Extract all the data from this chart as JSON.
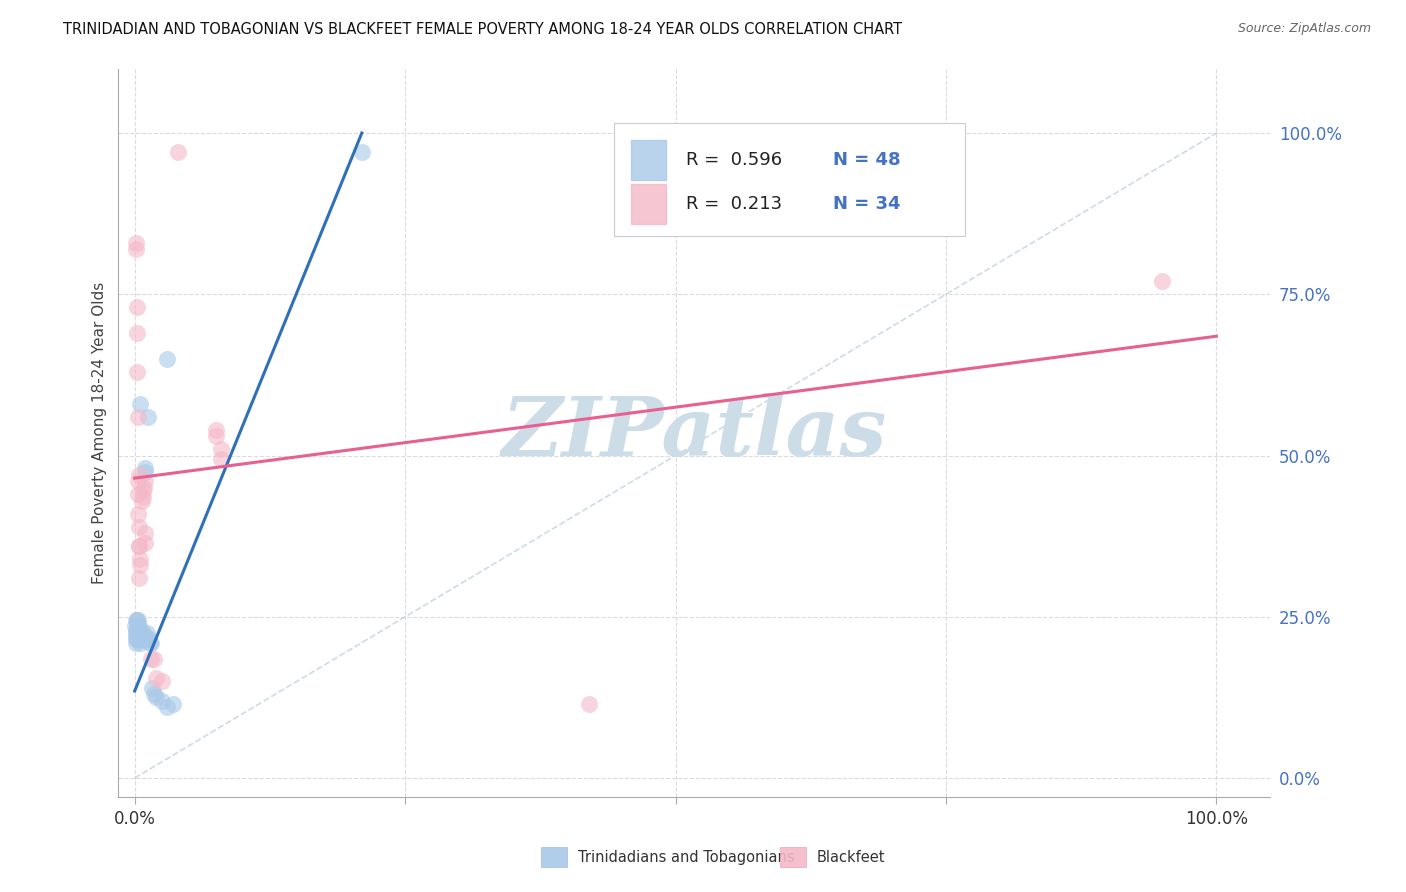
{
  "title": "TRINIDADIAN AND TOBAGONIAN VS BLACKFEET FEMALE POVERTY AMONG 18-24 YEAR OLDS CORRELATION CHART",
  "source": "Source: ZipAtlas.com",
  "ylabel": "Female Poverty Among 18-24 Year Olds",
  "legend_label1": "Trinidadians and Tobagonians",
  "legend_label2": "Blackfeet",
  "R1": 0.596,
  "N1": 48,
  "R2": 0.213,
  "N2": 34,
  "blue_scatter_color": "#a8c8e8",
  "pink_scatter_color": "#f4b8c8",
  "blue_line_color": "#3070b8",
  "pink_line_color": "#e86090",
  "diag_line_color": "#b8ccd8",
  "blue_scatter": [
    [
      0.0005,
      0.235
    ],
    [
      0.0008,
      0.22
    ],
    [
      0.001,
      0.21
    ],
    [
      0.001,
      0.23
    ],
    [
      0.001,
      0.245
    ],
    [
      0.0015,
      0.215
    ],
    [
      0.0015,
      0.225
    ],
    [
      0.002,
      0.22
    ],
    [
      0.002,
      0.235
    ],
    [
      0.002,
      0.245
    ],
    [
      0.0025,
      0.215
    ],
    [
      0.0025,
      0.225
    ],
    [
      0.003,
      0.215
    ],
    [
      0.003,
      0.225
    ],
    [
      0.003,
      0.235
    ],
    [
      0.003,
      0.245
    ],
    [
      0.004,
      0.22
    ],
    [
      0.004,
      0.235
    ],
    [
      0.005,
      0.21
    ],
    [
      0.005,
      0.22
    ],
    [
      0.005,
      0.225
    ],
    [
      0.006,
      0.215
    ],
    [
      0.006,
      0.225
    ],
    [
      0.007,
      0.215
    ],
    [
      0.007,
      0.225
    ],
    [
      0.008,
      0.215
    ],
    [
      0.008,
      0.225
    ],
    [
      0.009,
      0.22
    ],
    [
      0.009,
      0.215
    ],
    [
      0.01,
      0.215
    ],
    [
      0.01,
      0.22
    ],
    [
      0.011,
      0.225
    ],
    [
      0.012,
      0.215
    ],
    [
      0.013,
      0.215
    ],
    [
      0.014,
      0.21
    ],
    [
      0.015,
      0.21
    ],
    [
      0.016,
      0.14
    ],
    [
      0.018,
      0.13
    ],
    [
      0.02,
      0.125
    ],
    [
      0.025,
      0.12
    ],
    [
      0.03,
      0.11
    ],
    [
      0.035,
      0.115
    ],
    [
      0.01,
      0.48
    ],
    [
      0.01,
      0.475
    ],
    [
      0.012,
      0.56
    ],
    [
      0.03,
      0.65
    ],
    [
      0.005,
      0.58
    ],
    [
      0.21,
      0.97
    ]
  ],
  "pink_scatter": [
    [
      0.001,
      0.82
    ],
    [
      0.001,
      0.83
    ],
    [
      0.002,
      0.73
    ],
    [
      0.002,
      0.69
    ],
    [
      0.002,
      0.63
    ],
    [
      0.003,
      0.56
    ],
    [
      0.003,
      0.46
    ],
    [
      0.003,
      0.44
    ],
    [
      0.003,
      0.41
    ],
    [
      0.004,
      0.36
    ],
    [
      0.004,
      0.47
    ],
    [
      0.004,
      0.39
    ],
    [
      0.004,
      0.36
    ],
    [
      0.004,
      0.31
    ],
    [
      0.005,
      0.34
    ],
    [
      0.005,
      0.33
    ],
    [
      0.007,
      0.43
    ],
    [
      0.008,
      0.435
    ],
    [
      0.008,
      0.445
    ],
    [
      0.009,
      0.45
    ],
    [
      0.01,
      0.46
    ],
    [
      0.01,
      0.38
    ],
    [
      0.01,
      0.365
    ],
    [
      0.015,
      0.185
    ],
    [
      0.018,
      0.185
    ],
    [
      0.02,
      0.155
    ],
    [
      0.025,
      0.15
    ],
    [
      0.04,
      0.97
    ],
    [
      0.075,
      0.54
    ],
    [
      0.075,
      0.53
    ],
    [
      0.08,
      0.51
    ],
    [
      0.08,
      0.495
    ],
    [
      0.42,
      0.115
    ],
    [
      0.95,
      0.77
    ]
  ],
  "blue_line": [
    [
      0.0,
      0.135
    ],
    [
      0.21,
      1.0
    ]
  ],
  "pink_line": [
    [
      0.0,
      0.465
    ],
    [
      1.0,
      0.685
    ]
  ],
  "diag_line": [
    [
      0.0,
      0.0
    ],
    [
      1.0,
      1.0
    ]
  ],
  "watermark_text": "ZIPatlas",
  "watermark_color": "#ccdde8",
  "ytick_values": [
    0.0,
    0.25,
    0.5,
    0.75,
    1.0
  ],
  "ytick_labels": [
    "0.0%",
    "25.0%",
    "50.0%",
    "75.0%",
    "100.0%"
  ],
  "xtick_positions": [
    0.0,
    0.25,
    0.5,
    0.75,
    1.0
  ],
  "xlim": [
    -0.015,
    1.05
  ],
  "ylim": [
    -0.03,
    1.1
  ],
  "background_color": "#ffffff",
  "grid_color": "#d8d8d8",
  "right_ytick_color": "#4472c4",
  "legend_box_color": "#ffffff",
  "legend_border_color": "#cccccc"
}
